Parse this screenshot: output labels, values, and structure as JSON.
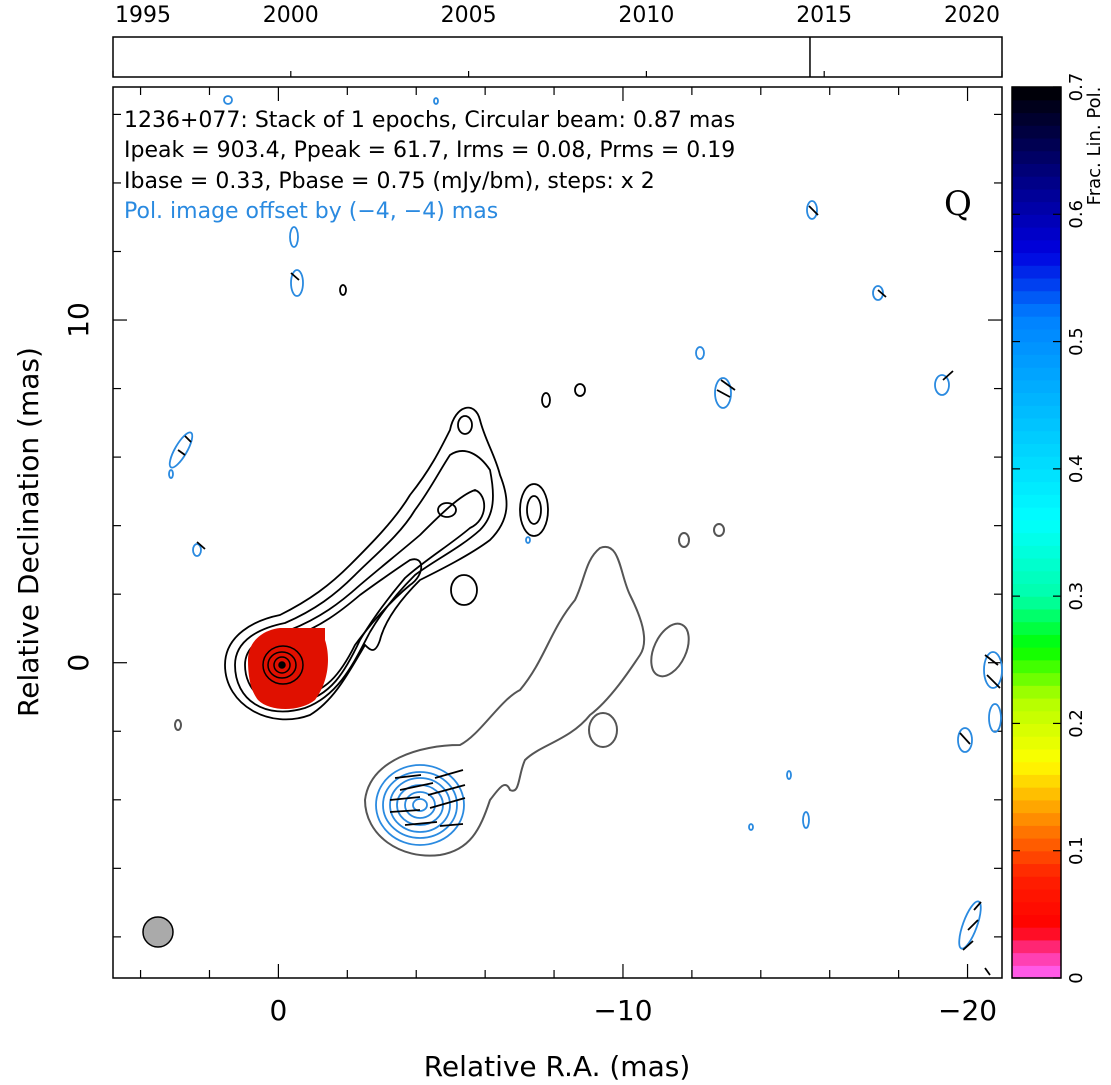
{
  "chart_data": {
    "type": "contour",
    "source": "1236+077",
    "info_lines": [
      "1236+077: Stack of 1 epochs, Circular beam: 0.87 mas",
      "Ipeak = 903.4, Ppeak = 61.7, Irms = 0.08, Prms = 0.19",
      "Ibase = 0.33, Pbase = 0.75 (mJy/bm), steps: x 2"
    ],
    "offset_note": "Pol. image offset by (−4, −4) mas",
    "band_letter": "Q",
    "xlabel": "Relative R.A. (mas)",
    "ylabel": "Relative Declination (mas)",
    "xlim": [
      4.8,
      -21
    ],
    "ylim": [
      -9.2,
      16.8
    ],
    "x_ticks": [
      "0",
      "−10",
      "−20"
    ],
    "y_ticks": [
      "0",
      "10"
    ],
    "timeline": {
      "years": [
        "1995",
        "2000",
        "2005",
        "2010",
        "2015",
        "2020"
      ],
      "range": [
        1995,
        2020
      ],
      "epochs": [
        2014.6
      ]
    },
    "colorbar": {
      "label": "Frac. Lin. Pol.",
      "range": [
        0,
        0.7
      ],
      "ticks": [
        "0",
        "0.1",
        "0.2",
        "0.3",
        "0.4",
        "0.5",
        "0.6",
        "0.7"
      ]
    },
    "beam_mas": 0.87,
    "ipeak_mJy": 903.4,
    "ppeak_mJy": 61.7,
    "irms_mJy": 0.08,
    "prms_mJy": 0.19,
    "ibase_mJy": 0.33,
    "pbase_mJy": 0.75,
    "colors": {
      "stokes_I_contours": "#000000",
      "pol_contours": "#2a8ae0",
      "pol_intensity_outline": "#555555",
      "frac_pol_core": "#e01000",
      "beam": "#aaaaaa",
      "offset_note": "#2a8ae0"
    }
  }
}
